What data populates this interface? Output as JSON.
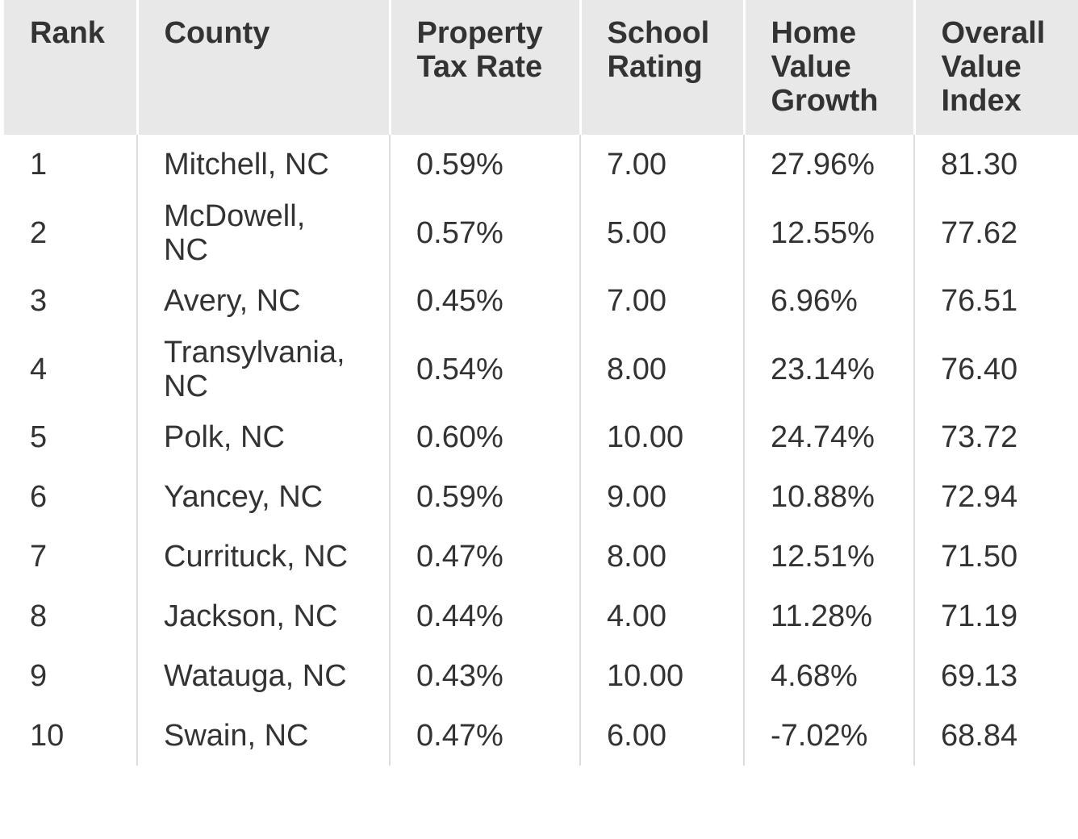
{
  "table": {
    "header": [
      "Rank",
      "County",
      "Property Tax Rate",
      "School Rating",
      "Home Value Growth",
      "Overall Value Index"
    ],
    "rows": [
      [
        "1",
        "Mitchell, NC",
        "0.59%",
        "7.00",
        "27.96%",
        "81.30"
      ],
      [
        "2",
        "McDowell, NC",
        "0.57%",
        "5.00",
        "12.55%",
        "77.62"
      ],
      [
        "3",
        "Avery, NC",
        "0.45%",
        "7.00",
        "6.96%",
        "76.51"
      ],
      [
        "4",
        "Transylvania, NC",
        "0.54%",
        "8.00",
        "23.14%",
        "76.40"
      ],
      [
        "5",
        "Polk, NC",
        "0.60%",
        "10.00",
        "24.74%",
        "73.72"
      ],
      [
        "6",
        "Yancey, NC",
        "0.59%",
        "9.00",
        "10.88%",
        "72.94"
      ],
      [
        "7",
        "Currituck, NC",
        "0.47%",
        "8.00",
        "12.51%",
        "71.50"
      ],
      [
        "8",
        "Jackson, NC",
        "0.44%",
        "4.00",
        "11.28%",
        "71.19"
      ],
      [
        "9",
        "Watauga, NC",
        "0.43%",
        "10.00",
        "4.68%",
        "69.13"
      ],
      [
        "10",
        "Swain, NC",
        "0.47%",
        "6.00",
        "-7.02%",
        "68.84"
      ]
    ]
  }
}
